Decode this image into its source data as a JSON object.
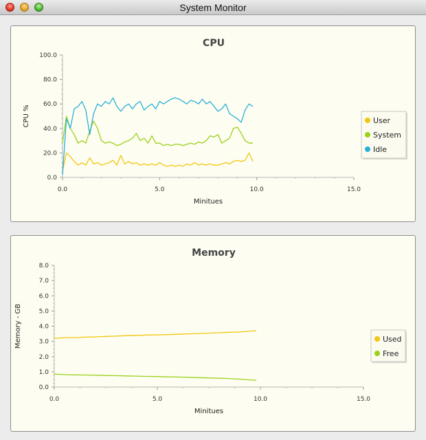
{
  "window": {
    "title": "System Monitor"
  },
  "chart_data": [
    {
      "type": "line",
      "title": "CPU",
      "xlabel": "Minitues",
      "ylabel": "CPU %",
      "xlim": [
        0,
        15
      ],
      "ylim": [
        0,
        100
      ],
      "xticks": [
        "0.0",
        "5.0",
        "10.0",
        "15.0"
      ],
      "yticks": [
        "0.0",
        "20.0",
        "40.0",
        "60.0",
        "80.0",
        "100.0"
      ],
      "legend_position": "right",
      "x": [
        0.0,
        0.2,
        0.4,
        0.6,
        0.8,
        1.0,
        1.2,
        1.4,
        1.6,
        1.8,
        2.0,
        2.2,
        2.4,
        2.6,
        2.8,
        3.0,
        3.2,
        3.4,
        3.6,
        3.8,
        4.0,
        4.2,
        4.4,
        4.6,
        4.8,
        5.0,
        5.2,
        5.4,
        5.6,
        5.8,
        6.0,
        6.2,
        6.4,
        6.6,
        6.8,
        7.0,
        7.2,
        7.4,
        7.6,
        7.8,
        8.0,
        8.2,
        8.4,
        8.6,
        8.8,
        9.0,
        9.2,
        9.4,
        9.6,
        9.8
      ],
      "series": [
        {
          "name": "User",
          "color": "#f3c60f",
          "values": [
            5,
            20,
            17,
            13,
            10,
            12,
            10,
            16,
            11,
            12,
            10,
            11,
            12,
            14,
            10,
            18,
            11,
            13,
            11,
            12,
            10,
            11,
            10,
            11,
            10,
            12,
            10,
            9,
            10,
            9,
            10,
            9,
            11,
            10,
            12,
            10,
            11,
            10,
            11,
            10,
            10,
            11,
            12,
            11,
            13,
            14,
            13,
            14,
            20,
            13
          ]
        },
        {
          "name": "System",
          "color": "#9bd11b",
          "values": [
            28,
            50,
            40,
            35,
            28,
            30,
            28,
            38,
            46,
            40,
            30,
            28,
            29,
            28,
            26,
            27,
            29,
            30,
            32,
            36,
            30,
            32,
            28,
            34,
            28,
            28,
            26,
            27,
            26,
            27,
            27,
            26,
            27,
            28,
            27,
            29,
            28,
            30,
            34,
            33,
            35,
            28,
            30,
            32,
            40,
            41,
            36,
            30,
            28,
            28
          ]
        },
        {
          "name": "Idle",
          "color": "#2ab0d7",
          "values": [
            2,
            48,
            40,
            56,
            58,
            62,
            55,
            35,
            52,
            60,
            58,
            62,
            60,
            65,
            58,
            54,
            58,
            60,
            56,
            60,
            62,
            55,
            58,
            60,
            56,
            62,
            60,
            62,
            64,
            65,
            64,
            62,
            60,
            63,
            62,
            60,
            64,
            60,
            62,
            58,
            54,
            56,
            60,
            52,
            50,
            48,
            45,
            55,
            60,
            58
          ]
        }
      ]
    },
    {
      "type": "line",
      "title": "Memory",
      "xlabel": "Minitues",
      "ylabel": "Memory - GB",
      "xlim": [
        0,
        15
      ],
      "ylim": [
        0,
        8
      ],
      "xticks": [
        "0.0",
        "5.0",
        "10.0",
        "15.0"
      ],
      "yticks": [
        "0.0",
        "1.0",
        "2.0",
        "3.0",
        "4.0",
        "5.0",
        "6.0",
        "7.0",
        "8.0"
      ],
      "legend_position": "right",
      "x": [
        0.0,
        0.5,
        1.0,
        1.5,
        2.0,
        2.5,
        3.0,
        3.5,
        4.0,
        4.5,
        5.0,
        5.5,
        6.0,
        6.5,
        7.0,
        7.5,
        8.0,
        8.5,
        9.0,
        9.5,
        9.8
      ],
      "series": [
        {
          "name": "Used",
          "color": "#f3c60f",
          "values": [
            3.2,
            3.25,
            3.25,
            3.28,
            3.3,
            3.33,
            3.35,
            3.38,
            3.4,
            3.42,
            3.43,
            3.45,
            3.47,
            3.5,
            3.52,
            3.55,
            3.57,
            3.6,
            3.62,
            3.68,
            3.7
          ]
        },
        {
          "name": "Free",
          "color": "#9bd11b",
          "values": [
            0.85,
            0.82,
            0.8,
            0.79,
            0.78,
            0.76,
            0.75,
            0.73,
            0.72,
            0.7,
            0.69,
            0.67,
            0.66,
            0.64,
            0.62,
            0.6,
            0.58,
            0.56,
            0.52,
            0.47,
            0.45
          ]
        }
      ]
    }
  ]
}
